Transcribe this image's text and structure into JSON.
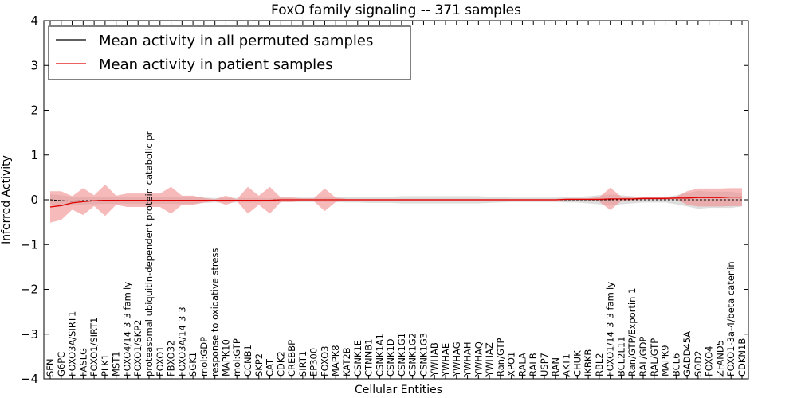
{
  "chart_data": {
    "type": "line",
    "title": "FoxO family signaling -- 371 samples",
    "xlabel": "Cellular Entities",
    "ylabel": "Inferred Activity",
    "ylim": [
      -4,
      4
    ],
    "yticks": [
      -4,
      -3,
      -2,
      -1,
      0,
      1,
      2,
      3,
      4
    ],
    "ytick_labels": [
      "−4",
      "−3",
      "−2",
      "−1",
      "0",
      "1",
      "2",
      "3",
      "4"
    ],
    "legend_position": "top-left",
    "categories": [
      "SFN",
      "G6PC",
      "FOXO3A/SIRT1",
      "FASLG",
      "FOXO1/SIRT1",
      "PLK1",
      "MST1",
      "FOXO4/14-3-3 family",
      "FOXO1/SKP2",
      "proteasomal ubiquitin-dependent protein catabolic pr",
      "FOXO1",
      "FBXO32",
      "FOXO3A/14-3-3",
      "SGK1",
      "mol:GDP",
      "response to oxidative stress",
      "MAPK10",
      "mol:GTP",
      "CCNB1",
      "SKP2",
      "CAT",
      "CDK2",
      "CREBBP",
      "SIRT1",
      "EP300",
      "FOXO3",
      "MAPK8",
      "KAT2B",
      "CSNK1E",
      "CTNNB1",
      "CSNK1A1",
      "CSNK1D",
      "CSNK1G1",
      "CSNK1G2",
      "CSNK1G3",
      "YWHAB",
      "YWHAE",
      "YWHAG",
      "YWHAH",
      "YWHAQ",
      "YWHAZ",
      "Ran/GTP",
      "XPO1",
      "RALA",
      "RALB",
      "USP7",
      "RAN",
      "AKT1",
      "CHUK",
      "IKBKB",
      "RBL2",
      "FOXO1/14-3-3 family",
      "BCL2L11",
      "Ran/GTP/Exportin 1",
      "RAL/GDP",
      "RAL/GTP",
      "MAPK9",
      "BCL6",
      "GADD45A",
      "SOD2",
      "FOXO4",
      "ZFAND5",
      "FOXO1-3a-4/beta catenin",
      "CDKN1B"
    ],
    "series": [
      {
        "name": "Mean activity in all permuted samples",
        "color": "#000000",
        "band_color": "#bdbdbd",
        "values": [
          0.0,
          -0.02,
          -0.03,
          -0.02,
          -0.02,
          -0.01,
          -0.01,
          -0.01,
          -0.01,
          -0.01,
          -0.01,
          -0.01,
          -0.01,
          -0.01,
          -0.01,
          -0.01,
          -0.01,
          -0.01,
          -0.01,
          -0.01,
          -0.01,
          0.0,
          0.0,
          0.0,
          0.0,
          0.0,
          0.0,
          0.0,
          0.0,
          0.0,
          0.0,
          0.0,
          0.0,
          0.0,
          0.0,
          0.0,
          0.0,
          0.0,
          0.0,
          0.0,
          0.0,
          0.0,
          0.0,
          0.0,
          0.0,
          0.0,
          0.0,
          0.0,
          0.0,
          0.0,
          0.0,
          0.0,
          0.0,
          0.0,
          0.0,
          0.0,
          0.0,
          0.0,
          0.0,
          0.0,
          0.0,
          0.0,
          0.0,
          0.0
        ],
        "band": [
          0.12,
          0.12,
          0.1,
          0.08,
          0.08,
          0.08,
          0.08,
          0.08,
          0.08,
          0.08,
          0.08,
          0.08,
          0.08,
          0.08,
          0.06,
          0.05,
          0.05,
          0.05,
          0.05,
          0.05,
          0.04,
          0.05,
          0.05,
          0.05,
          0.05,
          0.05,
          0.05,
          0.06,
          0.06,
          0.07,
          0.07,
          0.07,
          0.08,
          0.08,
          0.08,
          0.08,
          0.08,
          0.08,
          0.08,
          0.08,
          0.07,
          0.06,
          0.05,
          0.05,
          0.05,
          0.05,
          0.05,
          0.06,
          0.06,
          0.08,
          0.1,
          0.12,
          0.1,
          0.08,
          0.06,
          0.06,
          0.06,
          0.1,
          0.15,
          0.2,
          0.18,
          0.18,
          0.18,
          0.15
        ]
      },
      {
        "name": "Mean activity in patient samples",
        "color": "#e00000",
        "band_color": "#f08c8c",
        "values": [
          -0.16,
          -0.13,
          -0.07,
          -0.04,
          -0.02,
          -0.01,
          -0.01,
          -0.01,
          -0.01,
          -0.01,
          -0.01,
          -0.01,
          -0.01,
          -0.01,
          -0.01,
          -0.01,
          -0.01,
          -0.01,
          -0.01,
          -0.01,
          -0.01,
          0.0,
          0.0,
          0.0,
          0.0,
          0.0,
          0.0,
          0.0,
          0.0,
          0.0,
          0.0,
          0.0,
          0.0,
          0.0,
          0.0,
          0.0,
          0.0,
          0.0,
          0.0,
          0.0,
          0.0,
          0.0,
          0.0,
          0.0,
          0.0,
          0.0,
          0.0,
          0.01,
          0.01,
          0.01,
          0.01,
          0.02,
          0.02,
          0.02,
          0.03,
          0.03,
          0.03,
          0.04,
          0.04,
          0.05,
          0.05,
          0.05,
          0.06,
          0.06
        ],
        "band": [
          0.35,
          0.32,
          0.15,
          0.3,
          0.12,
          0.35,
          0.1,
          0.15,
          0.15,
          0.15,
          0.15,
          0.3,
          0.1,
          0.1,
          0.05,
          0.02,
          0.1,
          0.02,
          0.3,
          0.1,
          0.3,
          0.05,
          0.05,
          0.03,
          0.03,
          0.25,
          0.05,
          0.02,
          0.02,
          0.02,
          0.02,
          0.02,
          0.02,
          0.02,
          0.02,
          0.02,
          0.02,
          0.02,
          0.02,
          0.02,
          0.02,
          0.02,
          0.02,
          0.02,
          0.02,
          0.02,
          0.02,
          0.02,
          0.02,
          0.02,
          0.05,
          0.25,
          0.05,
          0.03,
          0.03,
          0.03,
          0.03,
          0.03,
          0.15,
          0.2,
          0.2,
          0.2,
          0.2,
          0.2
        ]
      }
    ]
  }
}
